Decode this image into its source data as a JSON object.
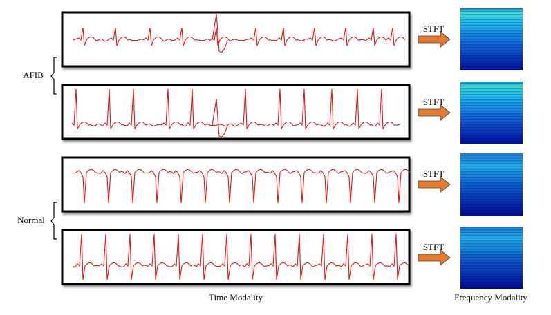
{
  "groups": [
    {
      "label": "AFIB",
      "rows": [
        {
          "transform": "STFT"
        },
        {
          "transform": "STFT"
        }
      ]
    },
    {
      "label": "Normal",
      "rows": [
        {
          "transform": "STFT"
        },
        {
          "transform": "STFT"
        }
      ]
    }
  ],
  "captions": {
    "time": "Time Modality",
    "frequency": "Frequency Modality"
  }
}
